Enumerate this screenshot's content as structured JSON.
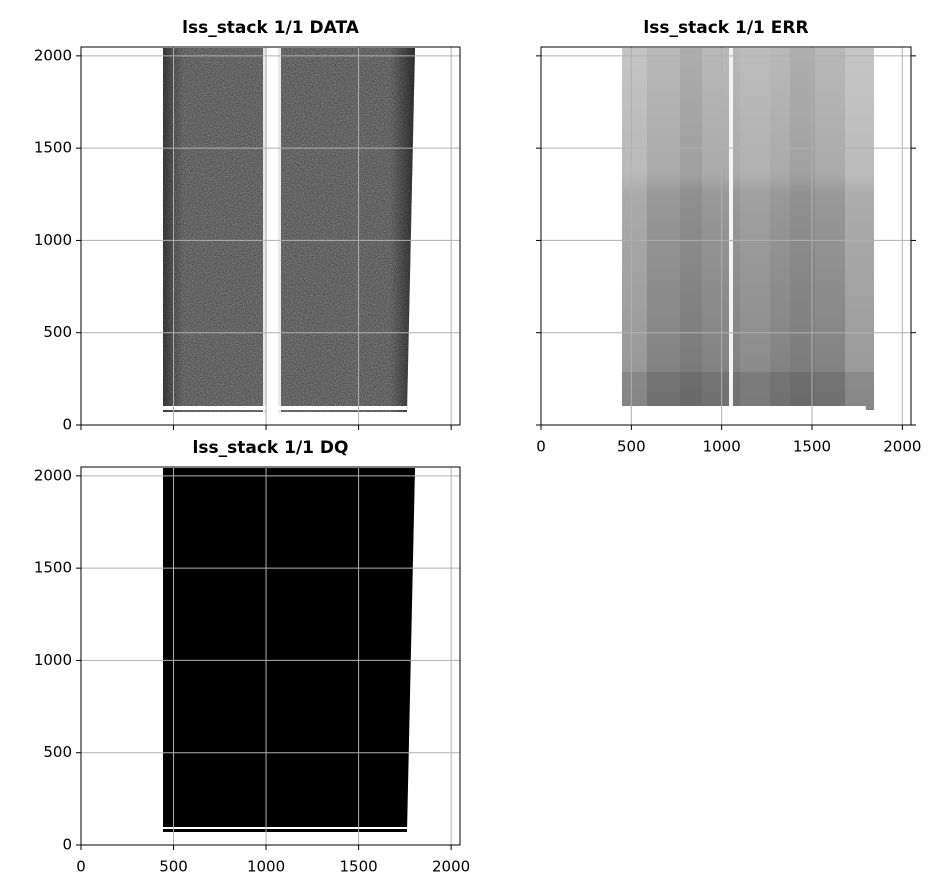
{
  "chart_data": [
    {
      "type": "image",
      "title": "lss_stack 1/1 DATA",
      "xlim": [
        0,
        2048
      ],
      "ylim": [
        0,
        2048
      ],
      "xticks": [
        0,
        500,
        1000,
        1500,
        2000
      ],
      "yticks": [
        0,
        500,
        1000,
        1500,
        2000
      ],
      "grid": true,
      "show_xticklabels": false,
      "show_yticklabels": true
    },
    {
      "type": "image",
      "title": "lss_stack 1/1 ERR",
      "xlim": [
        0,
        2048
      ],
      "ylim": [
        0,
        2048
      ],
      "xticks": [
        0,
        500,
        1000,
        1500,
        2000
      ],
      "yticks": [
        0,
        500,
        1000,
        1500,
        2000
      ],
      "grid": true,
      "show_xticklabels": true,
      "show_yticklabels": false
    },
    {
      "type": "image",
      "title": "lss_stack 1/1 DQ",
      "xlim": [
        0,
        2048
      ],
      "ylim": [
        0,
        2048
      ],
      "xticks": [
        0,
        500,
        1000,
        1500,
        2000
      ],
      "yticks": [
        0,
        500,
        1000,
        1500,
        2000
      ],
      "grid": true,
      "show_xticklabels": true,
      "show_yticklabels": true
    }
  ]
}
